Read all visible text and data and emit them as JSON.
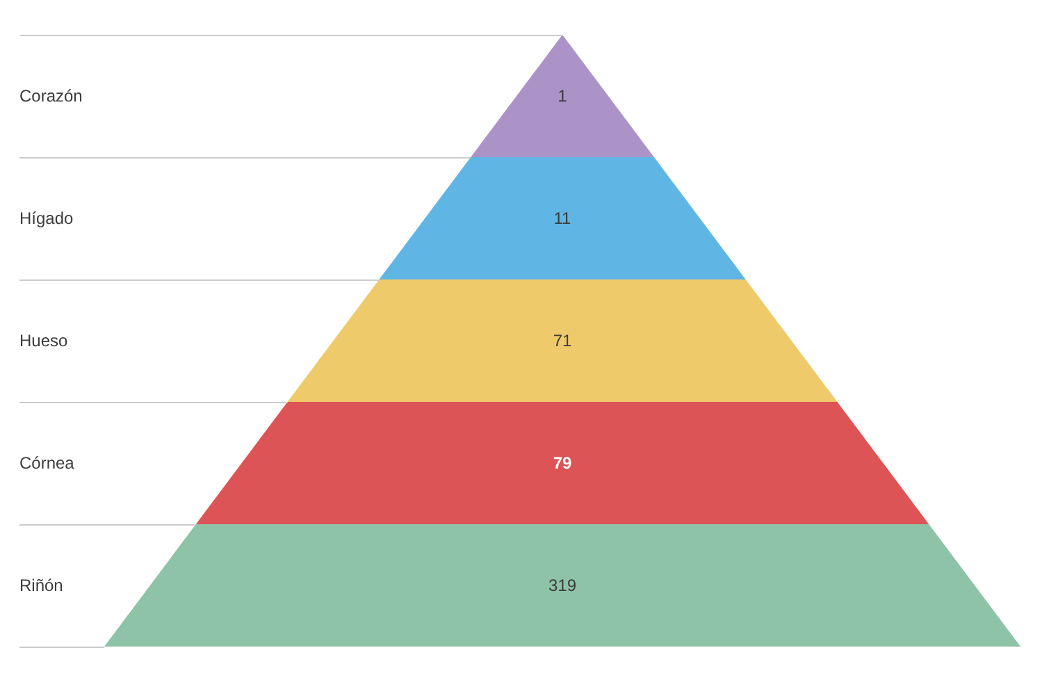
{
  "chart_data": {
    "type": "other",
    "categories": [
      "Corazón",
      "Hígado",
      "Hueso",
      "Córnea",
      "Riñón"
    ],
    "values": [
      1,
      11,
      71,
      79,
      319
    ],
    "colors": [
      "#ab92c7",
      "#5fb5e4",
      "#eeca6a",
      "#dc5456",
      "#8ec3a7"
    ],
    "data_labels": true
  }
}
